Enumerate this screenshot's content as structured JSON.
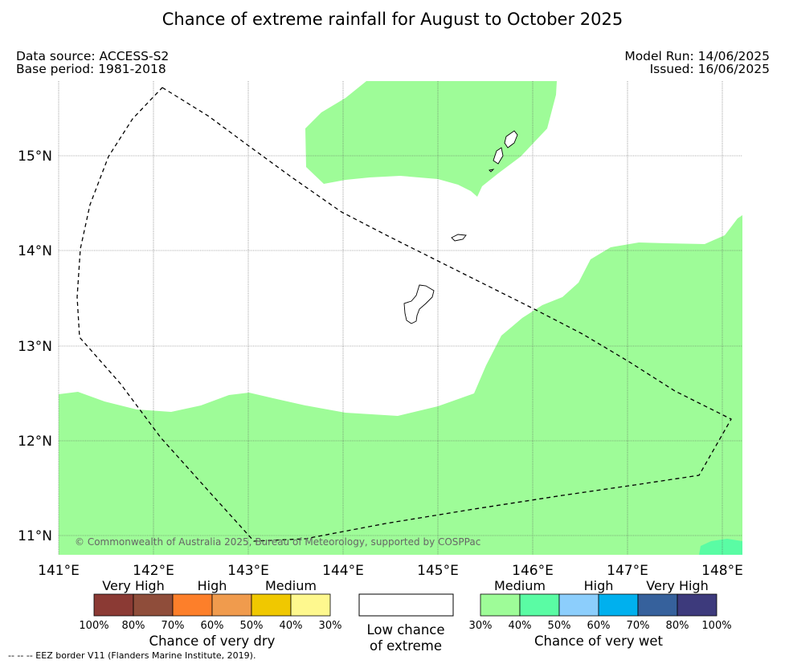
{
  "title": "Chance of extreme rainfall for August to October 2025",
  "source": {
    "data_source": "Data source: ACCESS-S2",
    "base_period": "Base period: 1981-2018",
    "model_run": "Model Run: 14/06/2025",
    "issued": "Issued: 16/06/2025"
  },
  "map": {
    "lat_labels": [
      "15°N",
      "14°N",
      "13°N",
      "12°N",
      "11°N"
    ],
    "lon_labels": [
      "141°E",
      "142°E",
      "143°E",
      "144°E",
      "145°E",
      "146°E",
      "147°E",
      "148°E"
    ],
    "copyright": "© Commonwealth of Australia 2025, Bureau of Meteorology, supported by COSPPac",
    "colors": {
      "medium_wet": "#9efc98",
      "wet_50": "#5afca4"
    }
  },
  "legend": {
    "dry": {
      "levels": [
        "Very High",
        "High",
        "Medium"
      ],
      "ticks": [
        "100%",
        "80%",
        "70%",
        "60%",
        "50%",
        "40%",
        "30%"
      ],
      "colors": [
        "#8b3a34",
        "#8f4d3a",
        "#fd7f2a",
        "#f09b4d",
        "#f0c800",
        "#fef88e"
      ],
      "title": "Chance of very dry"
    },
    "low": {
      "line1": "Low chance",
      "line2": "of extreme"
    },
    "wet": {
      "levels": [
        "Medium",
        "High",
        "Very High"
      ],
      "ticks": [
        "30%",
        "40%",
        "50%",
        "60%",
        "70%",
        "80%",
        "100%"
      ],
      "colors": [
        "#9efc98",
        "#5afca4",
        "#8ccefc",
        "#00b0ee",
        "#36619c",
        "#3d3a7c"
      ],
      "title": "Chance of very wet"
    }
  },
  "footnote": "--  --  -- EEZ border V11 (Flanders Marine Institute, 2019)."
}
